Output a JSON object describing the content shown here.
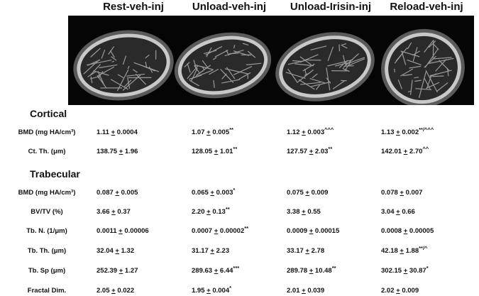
{
  "columns": [
    "Rest-veh-inj",
    "Unload-veh-inj",
    "Unload-Irisin-inj",
    "Reload-veh-inj"
  ],
  "sections": {
    "cortical": "Cortical",
    "trabecular": "Trabecular"
  },
  "pm_symbol": "+",
  "rows": [
    {
      "label": "BMD (mg HA/cm³)",
      "cells": [
        {
          "mean": "1.11",
          "sd": "0.0004",
          "sig": ""
        },
        {
          "mean": "1.07",
          "sd": "0.005",
          "sig": "**"
        },
        {
          "mean": "1.12",
          "sd": "0.003",
          "sig": "^^^"
        },
        {
          "mean": "1.13",
          "sd": "0.002",
          "sig": "**/^^^"
        }
      ]
    },
    {
      "label": "Ct. Th. (μm)",
      "cells": [
        {
          "mean": "138.75",
          "sd": "1.96",
          "sig": ""
        },
        {
          "mean": "128.05",
          "sd": "1.01",
          "sig": "**"
        },
        {
          "mean": "127.57",
          "sd": "2.03",
          "sig": "**"
        },
        {
          "mean": "142.01",
          "sd": "2.70",
          "sig": "^^"
        }
      ]
    },
    {
      "label": "BMD (mg HA/cm³)",
      "cells": [
        {
          "mean": "0.087",
          "sd": "0.005",
          "sig": ""
        },
        {
          "mean": "0.065",
          "sd": "0.003",
          "sig": "*"
        },
        {
          "mean": "0.075",
          "sd": "0.009",
          "sig": ""
        },
        {
          "mean": "0.078",
          "sd": "0.007",
          "sig": ""
        }
      ]
    },
    {
      "label": "BV/TV (%)",
      "cells": [
        {
          "mean": "3.66",
          "sd": "0.37",
          "sig": ""
        },
        {
          "mean": "2.20",
          "sd": "0.13",
          "sig": "**"
        },
        {
          "mean": "3.38",
          "sd": "0.55",
          "sig": ""
        },
        {
          "mean": "3.04",
          "sd": "0.66",
          "sig": ""
        }
      ]
    },
    {
      "label": "Tb. N. (1/μm)",
      "cells": [
        {
          "mean": "0.0011",
          "sd": "0.00006",
          "sig": ""
        },
        {
          "mean": "0.0007",
          "sd": "0.00002",
          "sig": "**"
        },
        {
          "mean": "0.0009",
          "sd": "0.00015",
          "sig": ""
        },
        {
          "mean": "0.0008",
          "sd": "0.00005",
          "sig": ""
        }
      ]
    },
    {
      "label": "Tb. Th. (μm)",
      "cells": [
        {
          "mean": "32.04",
          "sd": "1.32",
          "sig": ""
        },
        {
          "mean": "31.17",
          "sd": "2.23",
          "sig": ""
        },
        {
          "mean": "33.17",
          "sd": "2.78",
          "sig": ""
        },
        {
          "mean": "42.18",
          "sd": "1.88",
          "sig": "**/^"
        }
      ]
    },
    {
      "label": "Tb. Sp (μm)",
      "cells": [
        {
          "mean": "252.39",
          "sd": "1.27",
          "sig": ""
        },
        {
          "mean": "289.63",
          "sd": "6.44",
          "sig": "***"
        },
        {
          "mean": "289.78",
          "sd": "10.48",
          "sig": "**"
        },
        {
          "mean": "302.15",
          "sd": "30.87",
          "sig": "*"
        }
      ]
    },
    {
      "label": "Fractal Dim.",
      "cells": [
        {
          "mean": "2.05",
          "sd": "0.022",
          "sig": ""
        },
        {
          "mean": "1.95",
          "sd": "0.004",
          "sig": "*"
        },
        {
          "mean": "2.01",
          "sd": "0.039",
          "sig": ""
        },
        {
          "mean": "2.02",
          "sd": "0.009",
          "sig": ""
        }
      ]
    }
  ]
}
